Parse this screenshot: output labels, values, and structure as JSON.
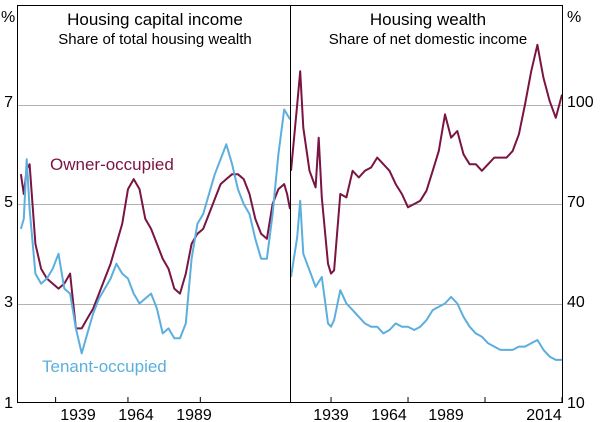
{
  "chart_data": [
    {
      "type": "line",
      "panel": "left",
      "title": "Housing capital income",
      "subtitle": "Share of total housing wealth",
      "y_unit": "%",
      "ylim": [
        1,
        9
      ],
      "yticks": [
        "1",
        "3",
        "5",
        "7"
      ],
      "xlim": [
        1926,
        2020
      ],
      "xticks": [
        "1939",
        "1964",
        "1989"
      ],
      "grid": true,
      "series": [
        {
          "name": "Owner-occupied",
          "color": "#7a1443",
          "x": [
            1927,
            1928,
            1929,
            1930,
            1932,
            1934,
            1936,
            1938,
            1940,
            1942,
            1944,
            1946,
            1948,
            1950,
            1952,
            1954,
            1956,
            1958,
            1960,
            1962,
            1964,
            1966,
            1968,
            1970,
            1972,
            1974,
            1976,
            1978,
            1980,
            1982,
            1984,
            1986,
            1988,
            1990,
            1992,
            1994,
            1996,
            1998,
            2000,
            2002,
            2004,
            2006,
            2008,
            2010,
            2012,
            2014,
            2016,
            2018,
            2019,
            2020
          ],
          "y": [
            5.6,
            5.2,
            5.7,
            5.8,
            4.2,
            3.7,
            3.5,
            3.4,
            3.3,
            3.4,
            3.6,
            2.5,
            2.5,
            2.7,
            2.9,
            3.2,
            3.5,
            3.8,
            4.2,
            4.6,
            5.3,
            5.5,
            5.3,
            4.7,
            4.5,
            4.2,
            3.9,
            3.7,
            3.3,
            3.2,
            3.6,
            4.2,
            4.4,
            4.5,
            4.8,
            5.1,
            5.4,
            5.5,
            5.6,
            5.6,
            5.5,
            5.2,
            4.7,
            4.4,
            4.3,
            5.0,
            5.3,
            5.4,
            5.2,
            4.9
          ]
        },
        {
          "name": "Tenant-occupied",
          "color": "#5bafde",
          "x": [
            1927,
            1928,
            1929,
            1930,
            1932,
            1934,
            1936,
            1938,
            1940,
            1942,
            1944,
            1946,
            1948,
            1950,
            1952,
            1954,
            1956,
            1958,
            1960,
            1962,
            1964,
            1966,
            1968,
            1970,
            1972,
            1974,
            1976,
            1978,
            1980,
            1982,
            1984,
            1986,
            1988,
            1990,
            1992,
            1994,
            1996,
            1998,
            2000,
            2002,
            2004,
            2006,
            2008,
            2010,
            2012,
            2014,
            2016,
            2018,
            2019,
            2020
          ],
          "y": [
            4.5,
            4.7,
            5.9,
            4.9,
            3.6,
            3.4,
            3.5,
            3.7,
            4.0,
            3.3,
            3.2,
            2.5,
            2.0,
            2.4,
            2.8,
            3.1,
            3.3,
            3.5,
            3.8,
            3.6,
            3.5,
            3.2,
            3.0,
            3.1,
            3.2,
            2.9,
            2.4,
            2.5,
            2.3,
            2.3,
            2.6,
            3.9,
            4.6,
            4.8,
            5.2,
            5.6,
            5.9,
            6.2,
            5.8,
            5.3,
            5.0,
            4.8,
            4.3,
            3.9,
            3.9,
            4.8,
            6.0,
            6.9,
            6.8,
            6.7
          ]
        }
      ],
      "annotations": [
        {
          "text": "Owner-occupied",
          "series": "Owner-occupied"
        },
        {
          "text": "Tenant-occupied",
          "series": "Tenant-occupied"
        }
      ]
    },
    {
      "type": "line",
      "panel": "right",
      "title": "Housing wealth",
      "subtitle": "Share of net domestic income",
      "y_unit": "%",
      "ylim": [
        10,
        130
      ],
      "yticks": [
        "10",
        "40",
        "70",
        "100"
      ],
      "xlim": [
        1926,
        2014
      ],
      "xticks": [
        "1939",
        "1964",
        "1989",
        "2014"
      ],
      "grid": true,
      "series": [
        {
          "name": "Owner-occupied",
          "color": "#7a1443",
          "x": [
            1926,
            1928,
            1929,
            1930,
            1932,
            1934,
            1935,
            1936,
            1938,
            1939,
            1940,
            1942,
            1944,
            1946,
            1948,
            1950,
            1952,
            1954,
            1956,
            1958,
            1960,
            1962,
            1964,
            1966,
            1968,
            1970,
            1972,
            1974,
            1976,
            1978,
            1980,
            1982,
            1984,
            1986,
            1988,
            1990,
            1992,
            1994,
            1996,
            1998,
            2000,
            2002,
            2004,
            2006,
            2007,
            2008,
            2010,
            2012,
            2014
          ],
          "y": [
            80,
            100,
            110,
            93,
            80,
            75,
            90,
            72,
            52,
            49,
            50,
            73,
            72,
            80,
            78,
            80,
            81,
            84,
            82,
            80,
            76,
            73,
            69,
            70,
            71,
            74,
            80,
            86,
            97,
            90,
            92,
            85,
            82,
            82,
            80,
            82,
            84,
            84,
            84,
            86,
            91,
            100,
            110,
            118,
            113,
            108,
            101,
            96,
            103
          ]
        },
        {
          "name": "Tenant-occupied",
          "color": "#5bafde",
          "x": [
            1926,
            1928,
            1929,
            1930,
            1932,
            1934,
            1936,
            1938,
            1939,
            1940,
            1942,
            1944,
            1946,
            1948,
            1950,
            1952,
            1954,
            1956,
            1958,
            1960,
            1962,
            1964,
            1966,
            1968,
            1970,
            1972,
            1974,
            1976,
            1978,
            1980,
            1982,
            1984,
            1986,
            1988,
            1990,
            1992,
            1994,
            1996,
            1998,
            2000,
            2002,
            2004,
            2006,
            2008,
            2010,
            2012,
            2014
          ],
          "y": [
            48,
            60,
            71,
            55,
            50,
            45,
            48,
            34,
            33,
            35,
            44,
            40,
            38,
            36,
            34,
            33,
            33,
            31,
            32,
            34,
            33,
            33,
            32,
            33,
            35,
            38,
            39,
            40,
            42,
            40,
            36,
            33,
            31,
            30,
            28,
            27,
            26,
            26,
            26,
            27,
            27,
            28,
            29,
            26,
            24,
            23,
            23
          ]
        }
      ]
    }
  ]
}
